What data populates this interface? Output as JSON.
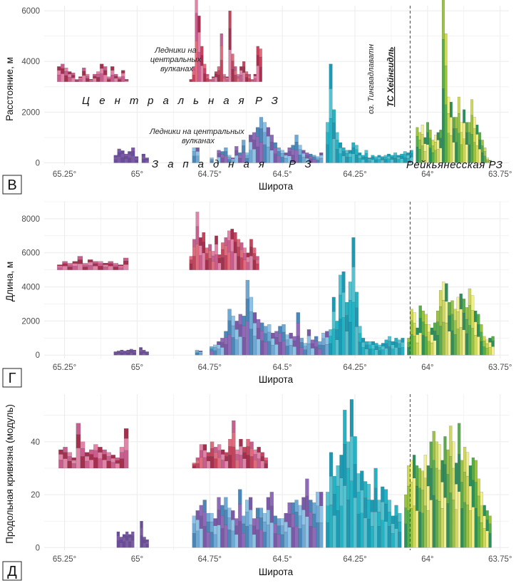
{
  "colors": {
    "central": [
      "#a4304e",
      "#c6435e",
      "#e06b7d",
      "#c85d8e",
      "#e085a8"
    ],
    "western_far": [
      "#6a4c9c",
      "#7d5aa8"
    ],
    "western": [
      "#4a86b8",
      "#6ea9d6",
      "#8ec2e6",
      "#7a5aa6",
      "#8f6ab8"
    ],
    "teal": [
      "#1d9ab3",
      "#24b3c4",
      "#56c2d0"
    ],
    "reykjanes": [
      "#2f8f5b",
      "#58ad4a",
      "#9ac243",
      "#cfd85b",
      "#f2ef8e"
    ],
    "grid": "#ebebeb",
    "dashed": "#444444"
  },
  "chart_data": [
    {
      "panel": "В",
      "type": "bar",
      "ylabel": "Расстояние, м",
      "xlabel": "Широта",
      "xlim": [
        65.32,
        63.72
      ],
      "ylim": [
        -100,
        6200
      ],
      "xticks": [
        "65.25°",
        "65°",
        "64.75°",
        "64.5°",
        "64.25°",
        "64°",
        "63.75°"
      ],
      "yticks": [
        "0",
        "2000",
        "4000",
        "6000"
      ],
      "series": [
        {
          "group": "central_left",
          "x_start": 65.275,
          "x_end": 65.03,
          "values": [
            3800,
            3900,
            3750,
            3600,
            3550,
            3300,
            3400,
            3750,
            3500,
            3300,
            3500,
            3600,
            3900,
            3800,
            3400,
            3800,
            3500,
            3400,
            3650,
            3300
          ]
        },
        {
          "group": "central_right",
          "x_start": 64.82,
          "x_end": 64.57,
          "values": [
            3300,
            3800,
            6800,
            5800,
            4600,
            3900,
            3500,
            3300,
            3400,
            3600,
            3800,
            5100,
            3500,
            3400,
            6000,
            4300,
            3800,
            3500,
            3800,
            4000,
            3600,
            3500,
            3300,
            3500,
            4600,
            4500
          ]
        },
        {
          "group": "western_far",
          "x_start": 65.08,
          "x_end": 64.96,
          "values": [
            300,
            550,
            480,
            350,
            450,
            600,
            250,
            0,
            350,
            200
          ]
        },
        {
          "group": "western",
          "x_start": 64.81,
          "x_end": 64.36,
          "values": [
            600,
            600,
            0,
            0,
            0,
            200,
            0,
            500,
            450,
            600,
            300,
            200,
            650,
            400,
            900,
            400,
            1100,
            1200,
            1400,
            1800,
            1600,
            1400,
            1100,
            800,
            600,
            500,
            400,
            600,
            700,
            1100,
            700,
            500,
            400,
            350,
            300,
            250,
            400
          ]
        },
        {
          "group": "teal",
          "x_start": 64.35,
          "x_end": 64.05,
          "values": [
            1600,
            3900,
            2100,
            1200,
            800,
            600,
            500,
            500,
            800,
            700,
            400,
            300,
            500,
            200,
            300,
            250,
            300,
            250,
            300,
            350,
            300,
            400,
            300,
            350,
            450,
            400,
            500
          ]
        },
        {
          "group": "reykjanes",
          "x_start": 64.04,
          "x_end": 63.78,
          "values": [
            1400,
            1200,
            1500,
            1000,
            1600,
            1300,
            900,
            1100,
            1200,
            1300,
            6500,
            5100,
            2600,
            2400,
            1800,
            1800,
            2600,
            1600,
            2100,
            1600,
            1600,
            2500,
            1800,
            1500,
            1200,
            900,
            600,
            200,
            100
          ]
        }
      ],
      "annotations": {
        "central_label": "Ледники на центральных вулканах",
        "western_label": "Ледники на центральных вулканах",
        "zone_central": "Центральная РЗ",
        "zone_western": "Западная РЗ",
        "zone_reykjanes": "Рейкьянесская РЗ",
        "lake": "оз. Тингвадлаватн",
        "ts": "ТС Хейнгидль",
        "ts_latitude": 64.06
      }
    },
    {
      "panel": "Г",
      "type": "bar",
      "ylabel": "Длина, м",
      "xlabel": "Широта",
      "xlim": [
        65.32,
        63.72
      ],
      "ylim": [
        -200,
        9000
      ],
      "xticks": [
        "65.25°",
        "65°",
        "64.75°",
        "64.5°",
        "64.25°",
        "64°",
        "63.75°"
      ],
      "yticks": [
        "0",
        "2000",
        "4000",
        "6000",
        "8000"
      ],
      "series": [
        {
          "group": "central_left",
          "x_start": 65.275,
          "x_end": 65.03,
          "values": [
            5300,
            5500,
            5400,
            5500,
            5800,
            5400,
            5600,
            5500,
            5500,
            5400,
            5500,
            5400,
            5300,
            5700
          ]
        },
        {
          "group": "central_right",
          "x_start": 64.82,
          "x_end": 64.58,
          "values": [
            5800,
            6800,
            8400,
            6900,
            7200,
            6300,
            6500,
            6100,
            7000,
            5900,
            6600,
            6900,
            7300,
            7400,
            7200,
            6800,
            6600,
            6300,
            6000,
            6800,
            6300,
            5800
          ]
        },
        {
          "group": "western_far",
          "x_start": 65.08,
          "x_end": 64.96,
          "values": [
            200,
            250,
            300,
            250,
            300,
            350,
            300,
            0,
            450,
            300,
            200
          ]
        },
        {
          "group": "western",
          "x_start": 64.8,
          "x_end": 64.34,
          "values": [
            300,
            250,
            0,
            0,
            500,
            600,
            800,
            1000,
            1400,
            2700,
            2300,
            2000,
            2400,
            2300,
            4400,
            3400,
            2500,
            2100,
            1900,
            1700,
            1800,
            1300,
            1400,
            1700,
            1800,
            1200,
            1300,
            1100,
            2500,
            1000,
            700,
            1500,
            900,
            1100,
            800,
            1300,
            1400
          ]
        },
        {
          "group": "teal",
          "x_start": 64.34,
          "x_end": 64.08,
          "values": [
            1500,
            3400,
            2000,
            4700,
            4900,
            3100,
            4300,
            6900,
            3700,
            1700,
            1000,
            800,
            800,
            800,
            700,
            600,
            700,
            900,
            1100,
            800,
            1000,
            900,
            1000
          ]
        },
        {
          "group": "reykjanes",
          "x_start": 64.07,
          "x_end": 63.77,
          "values": [
            1000,
            2700,
            2500,
            1600,
            2900,
            2600,
            2400,
            1800,
            1600,
            1900,
            2600,
            3800,
            4300,
            4200,
            3100,
            3200,
            2700,
            3400,
            3600,
            3300,
            2800,
            3900,
            3500,
            2600,
            2400,
            1800,
            1100,
            900,
            1000,
            1100
          ]
        }
      ],
      "annotations": {
        "ts_latitude": 64.06
      }
    },
    {
      "panel": "Д",
      "type": "bar",
      "ylabel": "Продольная кривизна (модуль)",
      "xlabel": "Широта",
      "xlim": [
        65.32,
        63.72
      ],
      "ylim": [
        -1,
        58
      ],
      "xticks": [
        "65.25°",
        "65°",
        "64.75°",
        "64.5°",
        "64.25°",
        "64°",
        "63.75°"
      ],
      "yticks": [
        "0",
        "20",
        "40"
      ],
      "series": [
        {
          "group": "central_left",
          "x_start": 65.27,
          "x_end": 65.03,
          "values": [
            37,
            38,
            36,
            34,
            47,
            40,
            36,
            37,
            39,
            38,
            37,
            36,
            35,
            34,
            38,
            45
          ]
        },
        {
          "group": "central_right",
          "x_start": 64.81,
          "x_end": 64.55,
          "values": [
            32,
            34,
            39,
            39,
            36,
            40,
            38,
            39,
            37,
            36,
            41,
            48,
            37,
            41,
            38,
            41,
            40,
            37,
            38,
            36,
            34
          ]
        },
        {
          "group": "western_far",
          "x_start": 65.07,
          "x_end": 64.96,
          "values": [
            6,
            4,
            5,
            6,
            5,
            6,
            0,
            0,
            10,
            4,
            3
          ]
        },
        {
          "group": "western",
          "x_start": 64.81,
          "x_end": 64.36,
          "values": [
            12,
            14,
            16,
            18,
            13,
            13,
            11,
            19,
            16,
            19,
            15,
            14,
            11,
            22,
            12,
            18,
            19,
            11,
            15,
            15,
            13,
            19,
            21,
            12,
            11,
            11,
            13,
            17,
            17,
            18,
            16,
            19,
            26,
            18,
            17,
            21,
            21
          ]
        },
        {
          "group": "teal",
          "x_start": 64.35,
          "x_end": 64.09,
          "values": [
            21,
            36,
            27,
            31,
            35,
            52,
            40,
            56,
            42,
            28,
            29,
            25,
            24,
            18,
            30,
            18,
            23,
            22,
            18,
            12,
            16,
            13
          ]
        },
        {
          "group": "reykjanes",
          "x_start": 64.08,
          "x_end": 63.78,
          "values": [
            20,
            31,
            33,
            35,
            31,
            30,
            29,
            35,
            31,
            40,
            44,
            40,
            39,
            33,
            42,
            37,
            46,
            40,
            32,
            47,
            33,
            38,
            36,
            31,
            34,
            33,
            26,
            21,
            16,
            14,
            12
          ]
        }
      ],
      "annotations": {
        "ts_latitude": 64.06
      }
    }
  ],
  "panels": {
    "v": {
      "letter": "В"
    },
    "g": {
      "letter": "Г"
    },
    "d": {
      "letter": "Д"
    }
  }
}
